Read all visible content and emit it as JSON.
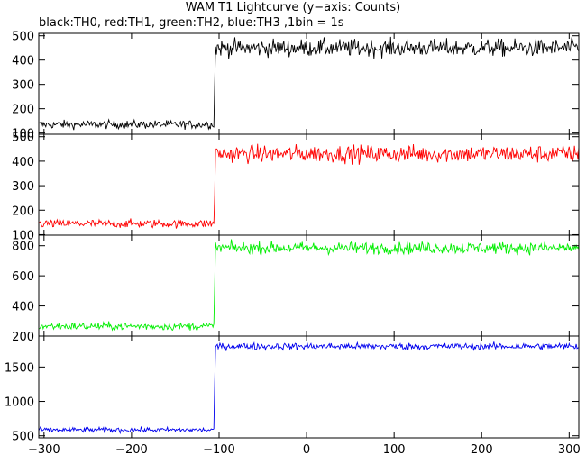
{
  "chart_data": {
    "type": "line",
    "title": "WAM T1 Lightcurve (y−axis: Counts)",
    "subtitle": "black:TH0, red:TH1, green:TH2, blue:TH3 ,1bin = 1s",
    "xlim": [
      -306,
      311
    ],
    "x_ticks": [
      -300,
      -200,
      -100,
      0,
      100,
      200,
      300
    ],
    "grid": false,
    "panels": [
      {
        "name": "TH0",
        "color": "#000000",
        "ylim": [
          95,
          510
        ],
        "y_ticks": [
          100,
          200,
          300,
          400,
          500
        ],
        "pre_level": 135,
        "post_level": 450,
        "noise_pre": 12,
        "noise_post": 25
      },
      {
        "name": "TH1",
        "color": "#ff0000",
        "ylim": [
          98,
          510
        ],
        "y_ticks": [
          100,
          200,
          300,
          400,
          500
        ],
        "pre_level": 145,
        "post_level": 430,
        "noise_pre": 12,
        "noise_post": 25
      },
      {
        "name": "TH2",
        "color": "#00ee00",
        "ylim": [
          200,
          870
        ],
        "y_ticks": [
          200,
          400,
          600,
          800
        ],
        "pre_level": 265,
        "post_level": 785,
        "noise_pre": 18,
        "noise_post": 28
      },
      {
        "name": "TH3",
        "color": "#0000ee",
        "ylim": [
          470,
          1950
        ],
        "y_ticks": [
          500,
          1000,
          1500
        ],
        "pre_level": 585,
        "post_level": 1800,
        "noise_pre": 25,
        "noise_post": 35
      }
    ],
    "step_time": -105
  }
}
